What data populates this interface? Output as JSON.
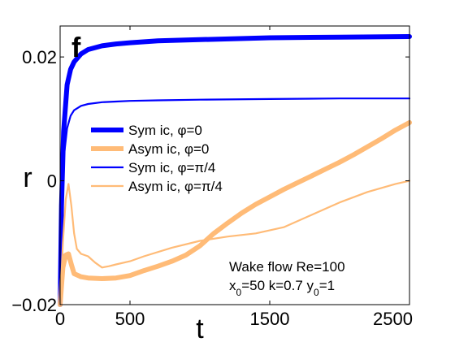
{
  "chart_data": {
    "type": "line",
    "panel_label": "f",
    "xlabel": "t",
    "ylabel": "r",
    "xlim": [
      0,
      2500
    ],
    "ylim": [
      -0.02,
      0.025
    ],
    "xticks": [
      0,
      500,
      1500,
      2500
    ],
    "xtick_labels": [
      "0",
      "500",
      "1500",
      "2500"
    ],
    "yticks": [
      -0.02,
      0,
      0.02
    ],
    "ytick_labels": [
      "−0.02",
      "0",
      "0.02"
    ],
    "grid": false,
    "legend_position": "middle-left",
    "annotation": {
      "line1": "Wake flow Re=100",
      "line2_parts": [
        "x",
        "0",
        "=50 k=0.7 y",
        "0",
        "=1"
      ]
    },
    "legend": [
      {
        "series": 0,
        "parts": [
          "Sym ic, ",
          "φ",
          "=0"
        ]
      },
      {
        "series": 1,
        "parts": [
          "Asym ic, ",
          "φ",
          "=0"
        ]
      },
      {
        "series": 2,
        "parts": [
          "Sym ic, ",
          "φ",
          "=π/4"
        ]
      },
      {
        "series": 3,
        "parts": [
          "Asym ic, ",
          "φ",
          "=π/4"
        ]
      }
    ],
    "series": [
      {
        "name": "Sym ic, φ=0",
        "color": "#0000ff",
        "width": "thick",
        "x": [
          0,
          10,
          25,
          50,
          75,
          100,
          150,
          200,
          300,
          400,
          500,
          700,
          1000,
          1500,
          2000,
          2500
        ],
        "y": [
          -0.02,
          -0.004,
          0.008,
          0.0155,
          0.018,
          0.0192,
          0.0205,
          0.0212,
          0.0218,
          0.0221,
          0.0223,
          0.0226,
          0.0228,
          0.0231,
          0.0232,
          0.0233
        ]
      },
      {
        "name": "Asym ic, φ=0",
        "color": "#ffbb77",
        "width": "thick",
        "x": [
          0,
          20,
          40,
          60,
          80,
          100,
          150,
          200,
          300,
          400,
          500,
          600,
          700,
          800,
          900,
          1000,
          1100,
          1200,
          1300,
          1400,
          1500,
          1600,
          1700,
          1800,
          1900,
          2000,
          2100,
          2200,
          2300,
          2400,
          2500
        ],
        "y": [
          -0.02,
          -0.014,
          -0.012,
          -0.0118,
          -0.0135,
          -0.015,
          -0.0155,
          -0.0157,
          -0.0158,
          -0.0157,
          -0.0153,
          -0.0145,
          -0.0138,
          -0.013,
          -0.012,
          -0.0105,
          -0.0085,
          -0.0068,
          -0.0052,
          -0.0038,
          -0.0026,
          -0.0014,
          -0.0003,
          0.0008,
          0.0019,
          0.003,
          0.0042,
          0.0055,
          0.0068,
          0.0082,
          0.0094
        ]
      },
      {
        "name": "Sym ic, φ=π/4",
        "color": "#0000ff",
        "width": "thin",
        "x": [
          0,
          10,
          25,
          50,
          75,
          100,
          150,
          200,
          300,
          400,
          500,
          700,
          1000,
          1500,
          2000,
          2500
        ],
        "y": [
          -0.02,
          -0.006,
          0.0035,
          0.0085,
          0.0105,
          0.0114,
          0.0121,
          0.0124,
          0.0127,
          0.0128,
          0.0129,
          0.013,
          0.0131,
          0.0132,
          0.0133,
          0.0133
        ]
      },
      {
        "name": "Asym ic, φ=π/4",
        "color": "#ffbb77",
        "width": "thin",
        "x": [
          0,
          20,
          40,
          60,
          80,
          100,
          120,
          150,
          200,
          250,
          300,
          350,
          400,
          500,
          600,
          800,
          1000,
          1200,
          1400,
          1600,
          1800,
          2000,
          2200,
          2400,
          2500
        ],
        "y": [
          -0.02,
          -0.01,
          -0.003,
          -0.0005,
          -0.004,
          -0.0085,
          -0.011,
          -0.0118,
          -0.0122,
          -0.0132,
          -0.014,
          -0.0138,
          -0.0135,
          -0.013,
          -0.0122,
          -0.0108,
          -0.0097,
          -0.009,
          -0.0085,
          -0.0075,
          -0.0055,
          -0.0035,
          -0.0018,
          -0.0005,
          0.0
        ]
      }
    ]
  }
}
